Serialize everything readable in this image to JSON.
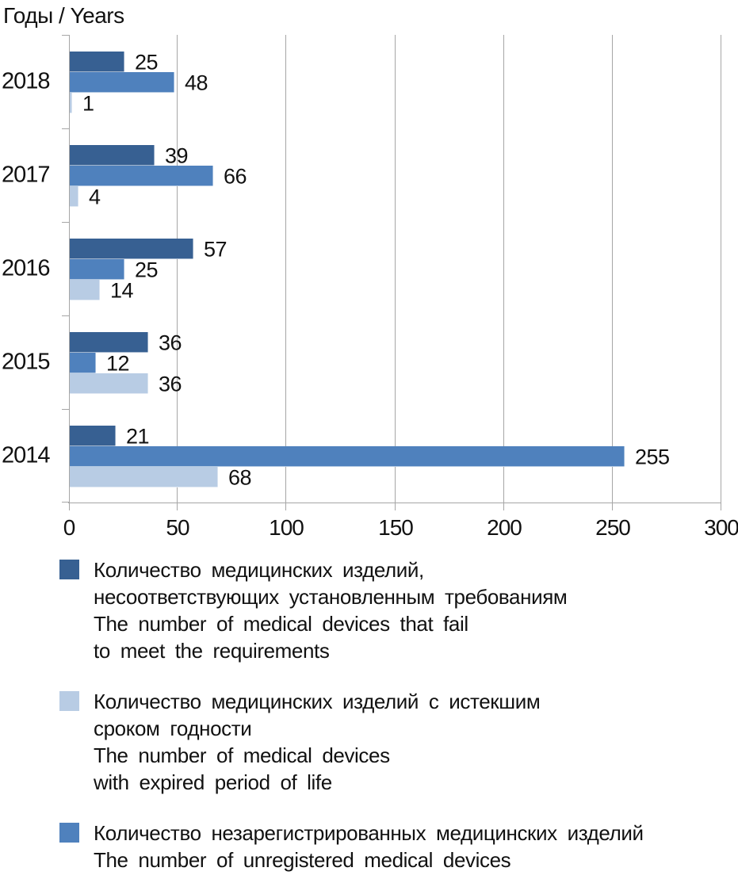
{
  "chart_data": {
    "type": "bar",
    "orientation": "horizontal",
    "title": "Годы / Years",
    "categories": [
      "2018",
      "2017",
      "2016",
      "2015",
      "2014"
    ],
    "xlim": [
      0,
      300
    ],
    "xticks": [
      "0",
      "50",
      "100",
      "150",
      "200",
      "250",
      "300"
    ],
    "grid": "vertical-gridlines",
    "legend_position": "bottom-left",
    "axis_color": "#a6a6a6",
    "text_color": "#111111",
    "series": [
      {
        "id": "fail-requirements",
        "color": "#376092",
        "values": [
          25,
          39,
          57,
          36,
          21
        ],
        "label": "Количество медицинских изделий,\nнесоответствующих установленным требованиям\nThe number of medical devices that fail\nto meet the requirements"
      },
      {
        "id": "unregistered",
        "color": "#4F81BD",
        "values": [
          48,
          66,
          25,
          12,
          255
        ],
        "label": "Количество незарегистрированных медицинских изделий\nThe number of unregistered medical devices"
      },
      {
        "id": "expired",
        "color": "#B8CCE4",
        "values": [
          1,
          4,
          14,
          36,
          68
        ],
        "label": "Количество медицинских изделий с истекшим\nсроком годности\nThe number of medical devices\nwith expired period of life"
      }
    ],
    "legend_order": [
      "fail-requirements",
      "expired",
      "unregistered"
    ]
  }
}
